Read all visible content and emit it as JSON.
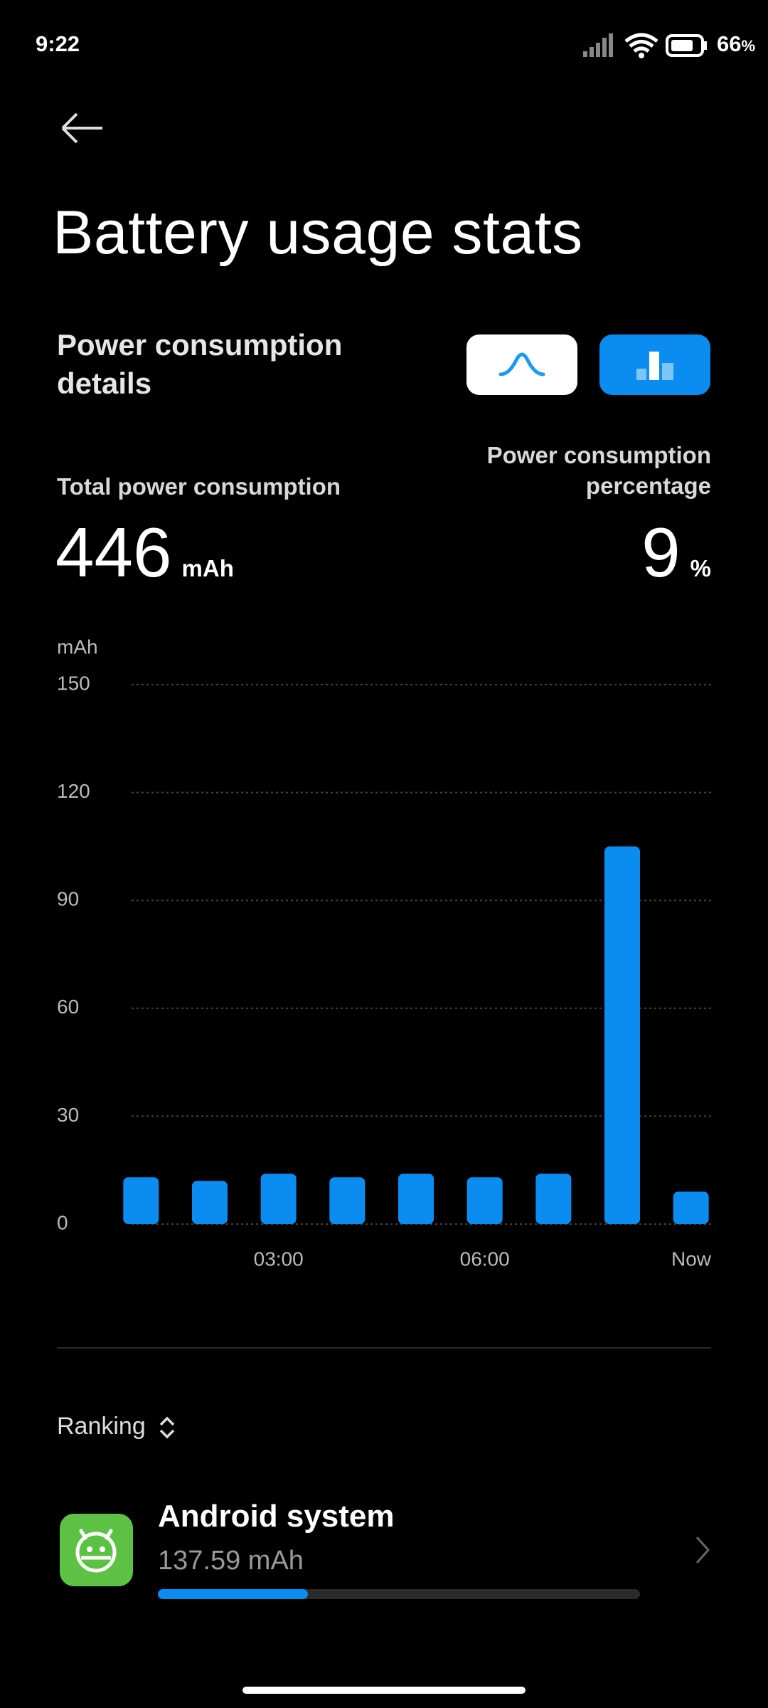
{
  "status_bar": {
    "time": "9:22",
    "battery": "66",
    "battery_unit": "%"
  },
  "header": {
    "title": "Battery usage stats"
  },
  "section": {
    "title": "Power consumption details"
  },
  "stats": {
    "total_label": "Total power consumption",
    "total_value": 446,
    "total_unit": "mAh",
    "percentage_label": "Power consumption percentage",
    "percentage_value": 9,
    "percentage_unit": "%"
  },
  "chart": {
    "type": "bar",
    "y_unit": "mAh",
    "categories": [
      null,
      null,
      "03:00",
      null,
      null,
      "06:00",
      null,
      null,
      "Now"
    ],
    "values": [
      13,
      12,
      14,
      13,
      14,
      13,
      14,
      105,
      9
    ],
    "color": "#0a8cf0",
    "ylim": [
      0,
      150
    ],
    "yticks": [
      0,
      30,
      60,
      90,
      120,
      150
    ],
    "grid": true
  },
  "ranking": {
    "label": "Ranking",
    "items": [
      {
        "name": "Android system",
        "value": "137.59 mAh"
      }
    ]
  }
}
